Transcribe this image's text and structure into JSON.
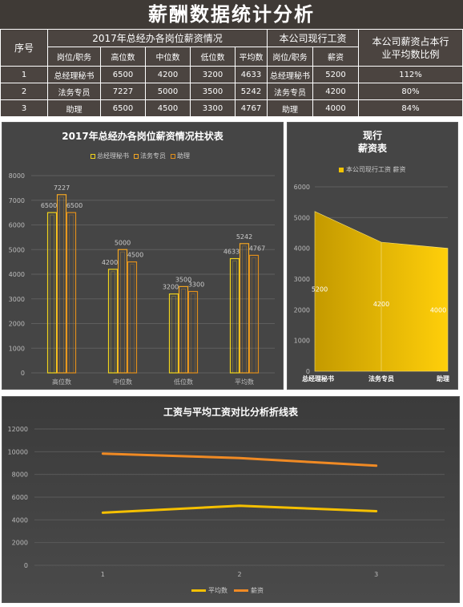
{
  "page_title": "薪酬数据统计分析",
  "table": {
    "seq_header": "序号",
    "group1_header": "2017年总经办各岗位薪资情况",
    "group2_header": "本公司现行工资",
    "ratio_header": "本公司薪资占本行业平均数比例",
    "col_headers": [
      "岗位/职务",
      "高位数",
      "中位数",
      "低位数",
      "平均数",
      "岗位/职务",
      "薪资"
    ],
    "rows": [
      {
        "seq": "1",
        "role": "总经理秘书",
        "high": "6500",
        "mid": "4200",
        "low": "3200",
        "avg": "4633",
        "role2": "总经理秘书",
        "salary": "5200",
        "ratio": "112%"
      },
      {
        "seq": "2",
        "role": "法务专员",
        "high": "7227",
        "mid": "5000",
        "low": "3500",
        "avg": "5242",
        "role2": "法务专员",
        "salary": "4200",
        "ratio": "80%"
      },
      {
        "seq": "3",
        "role": "助理",
        "high": "6500",
        "mid": "4500",
        "low": "3300",
        "avg": "4767",
        "role2": "助理",
        "salary": "4000",
        "ratio": "84%"
      }
    ]
  },
  "chart_data": [
    {
      "type": "bar",
      "title": "2017年总经办各岗位薪资情况柱状表",
      "categories": [
        "高位数",
        "中位数",
        "低位数",
        "平均数"
      ],
      "series": [
        {
          "name": "总经理秘书",
          "values": [
            6500,
            4200,
            3200,
            4633
          ],
          "color": "#f0d31c"
        },
        {
          "name": "法务专员",
          "values": [
            7227,
            5000,
            3500,
            5242
          ],
          "color": "#f4a622"
        },
        {
          "name": "助理",
          "values": [
            6500,
            4500,
            3300,
            4767
          ],
          "color": "#e08e1b"
        }
      ],
      "ylim": [
        0,
        8000
      ],
      "yticks": [
        "0",
        "1000",
        "2000",
        "3000",
        "4000",
        "5000",
        "6000",
        "7000",
        "8000"
      ],
      "legend_position": "top",
      "grid": true
    },
    {
      "type": "area",
      "title": "现行\n薪资表",
      "title_lines": [
        "现行",
        "薪资表"
      ],
      "categories": [
        "总经理秘书",
        "法务专员",
        "助理"
      ],
      "series": [
        {
          "name": "本公司现行工资 薪资",
          "values": [
            5200,
            4200,
            4000
          ],
          "color": "#f2c300"
        }
      ],
      "data_labels": [
        "5200",
        "4200",
        "4000"
      ],
      "ylim": [
        0,
        6000
      ],
      "yticks": [
        "0",
        "1000",
        "2000",
        "3000",
        "4000",
        "5000",
        "6000"
      ],
      "legend_position": "top",
      "grid": true
    },
    {
      "type": "line",
      "title": "工资与平均工资对比分析折线表",
      "x": [
        "1",
        "2",
        "3"
      ],
      "series": [
        {
          "name": "平均数",
          "values": [
            4633,
            5242,
            4767
          ],
          "color": "#f5c000"
        },
        {
          "name": "薪资",
          "values": [
            9833,
            9442,
            8767
          ],
          "color": "#f08a24"
        }
      ],
      "ylim": [
        0,
        12000
      ],
      "yticks": [
        "0",
        "2000",
        "4000",
        "6000",
        "8000",
        "10000",
        "12000"
      ],
      "legend_position": "bottom",
      "grid": true
    }
  ]
}
